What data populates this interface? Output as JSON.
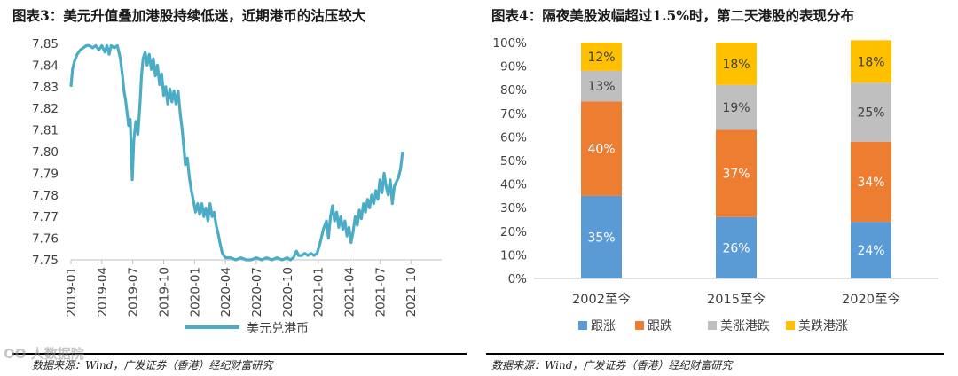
{
  "left_panel": {
    "title": "图表3：美元升值叠加港股持续低迷，近期港币的沽压较大",
    "source": "数据来源：Wind，广发证券（香港）经纪财富研究"
  },
  "right_panel": {
    "title": "图表4：隔夜美股波幅超过1.5%时，第二天港股的表现分布",
    "source": "数据来源：Wind，广发证券（香港）经纪财富研究"
  },
  "watermark": "OO  人数据院",
  "colors": {
    "line": "#4bacc6",
    "up": "#5b9bd5",
    "down": "#ed7d31",
    "us_up_hk_down": "#bfbfbf",
    "us_down_hk_up": "#ffc000",
    "rule": "#000000"
  },
  "chart_data": [
    {
      "type": "line",
      "title": "",
      "xlabel": "",
      "ylabel": "",
      "series_name": "美元兑港币",
      "ylim": [
        7.75,
        7.85
      ],
      "yticks": [
        "7.85",
        "7.84",
        "7.83",
        "7.82",
        "7.81",
        "7.80",
        "7.79",
        "7.78",
        "7.77",
        "7.76",
        "7.75"
      ],
      "xticks": [
        "2019-01",
        "2019-04",
        "2019-07",
        "2019-10",
        "2020-01",
        "2020-04",
        "2020-07",
        "2020-10",
        "2021-01",
        "2021-04",
        "2021-07",
        "2021-10"
      ],
      "x_range_months": [
        0,
        36
      ],
      "points": [
        [
          0.0,
          7.83
        ],
        [
          0.15,
          7.838
        ],
        [
          0.35,
          7.842
        ],
        [
          0.6,
          7.845
        ],
        [
          0.9,
          7.847
        ],
        [
          1.2,
          7.848
        ],
        [
          1.5,
          7.849
        ],
        [
          1.8,
          7.849
        ],
        [
          2.1,
          7.848
        ],
        [
          2.4,
          7.849
        ],
        [
          2.7,
          7.847
        ],
        [
          3.0,
          7.849
        ],
        [
          3.3,
          7.846
        ],
        [
          3.5,
          7.849
        ],
        [
          3.7,
          7.845
        ],
        [
          3.9,
          7.849
        ],
        [
          4.2,
          7.848
        ],
        [
          4.5,
          7.849
        ],
        [
          4.8,
          7.843
        ],
        [
          5.0,
          7.835
        ],
        [
          5.15,
          7.828
        ],
        [
          5.3,
          7.824
        ],
        [
          5.45,
          7.818
        ],
        [
          5.6,
          7.812
        ],
        [
          5.75,
          7.815
        ],
        [
          5.85,
          7.8
        ],
        [
          5.95,
          7.787
        ],
        [
          6.1,
          7.805
        ],
        [
          6.3,
          7.814
        ],
        [
          6.5,
          7.808
        ],
        [
          6.7,
          7.822
        ],
        [
          6.85,
          7.835
        ],
        [
          7.0,
          7.843
        ],
        [
          7.2,
          7.846
        ],
        [
          7.4,
          7.84
        ],
        [
          7.6,
          7.845
        ],
        [
          7.8,
          7.838
        ],
        [
          8.0,
          7.843
        ],
        [
          8.2,
          7.835
        ],
        [
          8.4,
          7.84
        ],
        [
          8.6,
          7.831
        ],
        [
          8.8,
          7.836
        ],
        [
          9.0,
          7.826
        ],
        [
          9.2,
          7.83
        ],
        [
          9.4,
          7.822
        ],
        [
          9.6,
          7.829
        ],
        [
          9.8,
          7.823
        ],
        [
          10.0,
          7.828
        ],
        [
          10.2,
          7.822
        ],
        [
          10.4,
          7.828
        ],
        [
          10.6,
          7.818
        ],
        [
          10.8,
          7.81
        ],
        [
          11.0,
          7.8
        ],
        [
          11.1,
          7.794
        ],
        [
          11.3,
          7.797
        ],
        [
          11.5,
          7.788
        ],
        [
          11.7,
          7.782
        ],
        [
          11.9,
          7.777
        ],
        [
          12.1,
          7.772
        ],
        [
          12.3,
          7.776
        ],
        [
          12.5,
          7.771
        ],
        [
          12.7,
          7.776
        ],
        [
          12.9,
          7.77
        ],
        [
          13.1,
          7.774
        ],
        [
          13.3,
          7.768
        ],
        [
          13.5,
          7.776
        ],
        [
          13.7,
          7.77
        ],
        [
          13.9,
          7.772
        ],
        [
          14.1,
          7.766
        ],
        [
          14.3,
          7.762
        ],
        [
          14.5,
          7.757
        ],
        [
          14.7,
          7.753
        ],
        [
          15.0,
          7.751
        ],
        [
          15.5,
          7.751
        ],
        [
          16.0,
          7.75
        ],
        [
          16.5,
          7.751
        ],
        [
          17.0,
          7.75
        ],
        [
          17.5,
          7.75
        ],
        [
          18.0,
          7.751
        ],
        [
          18.5,
          7.75
        ],
        [
          19.0,
          7.751
        ],
        [
          19.5,
          7.75
        ],
        [
          20.0,
          7.751
        ],
        [
          20.5,
          7.75
        ],
        [
          21.0,
          7.751
        ],
        [
          21.3,
          7.75
        ],
        [
          21.6,
          7.751
        ],
        [
          21.9,
          7.754
        ],
        [
          22.1,
          7.752
        ],
        [
          22.4,
          7.752
        ],
        [
          22.7,
          7.753
        ],
        [
          23.0,
          7.752
        ],
        [
          23.3,
          7.753
        ],
        [
          23.6,
          7.752
        ],
        [
          23.9,
          7.753
        ],
        [
          24.2,
          7.758
        ],
        [
          24.5,
          7.764
        ],
        [
          24.8,
          7.768
        ],
        [
          25.0,
          7.76
        ],
        [
          25.2,
          7.77
        ],
        [
          25.4,
          7.775
        ],
        [
          25.6,
          7.768
        ],
        [
          25.8,
          7.772
        ],
        [
          26.0,
          7.765
        ],
        [
          26.2,
          7.77
        ],
        [
          26.4,
          7.764
        ],
        [
          26.6,
          7.768
        ],
        [
          26.8,
          7.761
        ],
        [
          27.0,
          7.765
        ],
        [
          27.2,
          7.758
        ],
        [
          27.4,
          7.763
        ],
        [
          27.6,
          7.77
        ],
        [
          27.8,
          7.766
        ],
        [
          28.0,
          7.773
        ],
        [
          28.2,
          7.769
        ],
        [
          28.4,
          7.776
        ],
        [
          28.6,
          7.772
        ],
        [
          28.8,
          7.778
        ],
        [
          29.0,
          7.774
        ],
        [
          29.2,
          7.78
        ],
        [
          29.4,
          7.776
        ],
        [
          29.6,
          7.782
        ],
        [
          29.8,
          7.778
        ],
        [
          30.0,
          7.787
        ],
        [
          30.2,
          7.781
        ],
        [
          30.4,
          7.79
        ],
        [
          30.6,
          7.784
        ],
        [
          30.8,
          7.78
        ],
        [
          31.0,
          7.787
        ],
        [
          31.2,
          7.776
        ],
        [
          31.4,
          7.784
        ],
        [
          31.6,
          7.786
        ],
        [
          31.8,
          7.788
        ],
        [
          32.0,
          7.792
        ],
        [
          32.2,
          7.8
        ]
      ]
    },
    {
      "type": "bar",
      "stacked": true,
      "title": "",
      "xlabel": "",
      "ylabel": "",
      "ylim": [
        0,
        100
      ],
      "yticks": [
        "0%",
        "10%",
        "20%",
        "30%",
        "40%",
        "50%",
        "60%",
        "70%",
        "80%",
        "90%",
        "100%"
      ],
      "categories": [
        "2002至今",
        "2015至今",
        "2020至今"
      ],
      "series": [
        {
          "name": "跟涨",
          "values": [
            35,
            26,
            24
          ],
          "labels": [
            "35%",
            "26%",
            "24%"
          ]
        },
        {
          "name": "跟跌",
          "values": [
            40,
            37,
            34
          ],
          "labels": [
            "40%",
            "37%",
            "34%"
          ]
        },
        {
          "name": "美涨港跌",
          "values": [
            13,
            19,
            25
          ],
          "labels": [
            "13%",
            "19%",
            "25%"
          ]
        },
        {
          "name": "美跌港涨",
          "values": [
            12,
            18,
            18
          ],
          "labels": [
            "12%",
            "18%",
            "18%"
          ]
        }
      ]
    }
  ]
}
